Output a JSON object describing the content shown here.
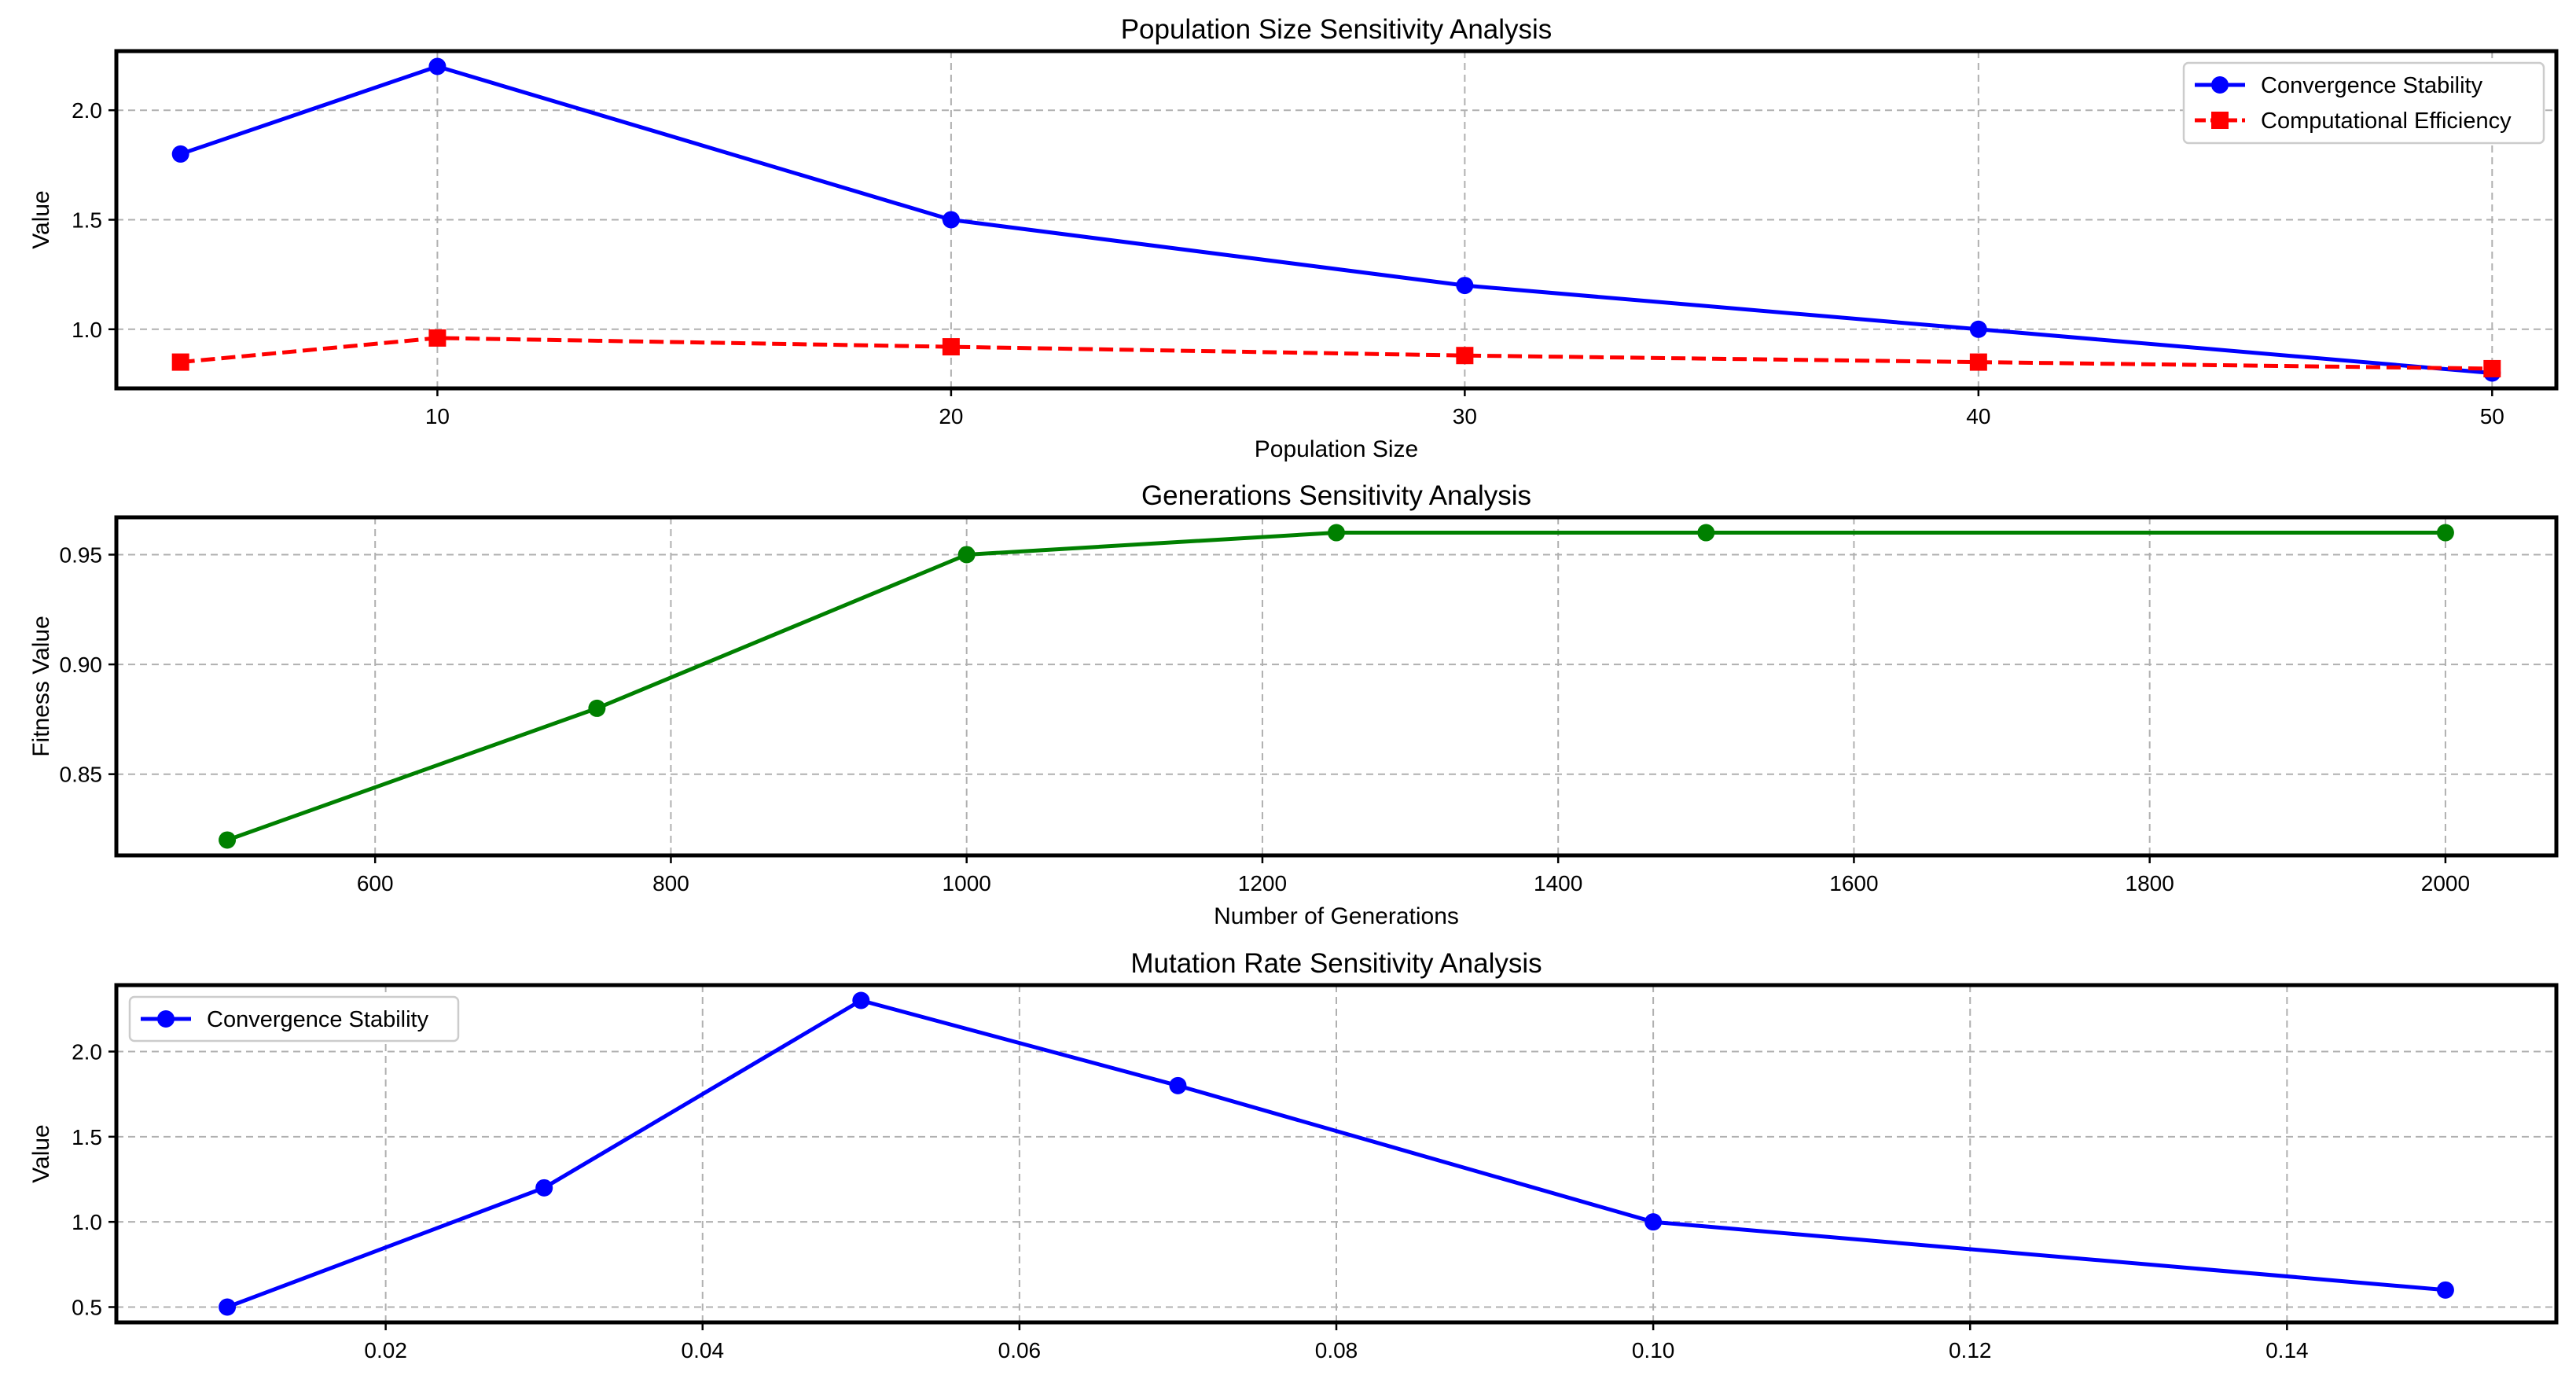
{
  "chart_data": [
    {
      "type": "line",
      "title": "Population Size Sensitivity Analysis",
      "xlabel": "Population Size",
      "ylabel": "Value",
      "xlim": [
        3.75,
        51.25
      ],
      "ylim": [
        0.73,
        2.27
      ],
      "xticks": [
        10,
        20,
        30,
        40,
        50
      ],
      "xtick_labels": [
        "10",
        "20",
        "30",
        "40",
        "50"
      ],
      "yticks": [
        1.0,
        1.5,
        2.0
      ],
      "ytick_labels": [
        "1.0",
        "1.5",
        "2.0"
      ],
      "grid": true,
      "legend_position": "top-right",
      "x": [
        5,
        10,
        20,
        30,
        40,
        50
      ],
      "series": [
        {
          "name": "Convergence Stability",
          "values": [
            1.8,
            2.2,
            1.5,
            1.2,
            1.0,
            0.8
          ],
          "color": "#0000ff",
          "marker": "circle",
          "linestyle": "solid"
        },
        {
          "name": "Computational Efficiency",
          "values": [
            0.85,
            0.96,
            0.92,
            0.88,
            0.85,
            0.82
          ],
          "color": "#ff0000",
          "marker": "square",
          "linestyle": "dashed"
        }
      ]
    },
    {
      "type": "line",
      "title": "Generations Sensitivity Analysis",
      "xlabel": "Number of Generations",
      "ylabel": "Fitness Value",
      "xlim": [
        425,
        2075
      ],
      "ylim": [
        0.813,
        0.967
      ],
      "xticks": [
        600,
        800,
        1000,
        1200,
        1400,
        1600,
        1800,
        2000
      ],
      "xtick_labels": [
        "600",
        "800",
        "1000",
        "1200",
        "1400",
        "1600",
        "1800",
        "2000"
      ],
      "yticks": [
        0.85,
        0.9,
        0.95
      ],
      "ytick_labels": [
        "0.85",
        "0.90",
        "0.95"
      ],
      "grid": true,
      "legend_position": "none",
      "x": [
        500,
        750,
        1000,
        1250,
        1500,
        2000
      ],
      "series": [
        {
          "name": "Fitness",
          "values": [
            0.82,
            0.88,
            0.95,
            0.96,
            0.96,
            0.96
          ],
          "color": "#008000",
          "marker": "circle",
          "linestyle": "solid"
        }
      ]
    },
    {
      "type": "line",
      "title": "Mutation Rate Sensitivity Analysis",
      "xlabel": "",
      "ylabel": "Value",
      "xlim": [
        0.003,
        0.157
      ],
      "ylim": [
        0.41,
        2.39
      ],
      "xticks": [
        0.02,
        0.04,
        0.06,
        0.08,
        0.1,
        0.12,
        0.14
      ],
      "xtick_labels": [
        "0.02",
        "0.04",
        "0.06",
        "0.08",
        "0.10",
        "0.12",
        "0.14"
      ],
      "yticks": [
        0.5,
        1.0,
        1.5,
        2.0
      ],
      "ytick_labels": [
        "0.5",
        "1.0",
        "1.5",
        "2.0"
      ],
      "grid": true,
      "legend_position": "top-left",
      "x": [
        0.01,
        0.03,
        0.05,
        0.07,
        0.1,
        0.15
      ],
      "series": [
        {
          "name": "Convergence Stability",
          "values": [
            0.5,
            1.2,
            2.3,
            1.8,
            1.0,
            0.6
          ],
          "color": "#0000ff",
          "marker": "circle",
          "linestyle": "solid"
        }
      ]
    }
  ]
}
